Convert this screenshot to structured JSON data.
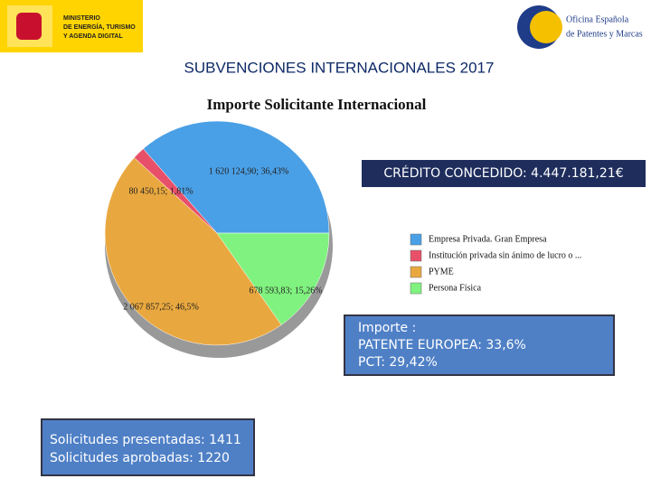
{
  "header": {
    "ministry": [
      "MINISTERIO",
      "DE ENERGÍA, TURISMO",
      "Y AGENDA DIGITAL"
    ],
    "office": [
      "Oficina Española",
      "de Patentes y Marcas"
    ],
    "title": "SUBVENCIONES INTERNACIONALES 2017"
  },
  "chart_data": {
    "type": "pie",
    "title": "Importe Solicitante Internacional",
    "categories": [
      "Empresa Privada. Gran Empresa",
      "Institución privada sin ánimo de lucro o ...",
      "PYME",
      "Persona Física"
    ],
    "values": [
      36.43,
      1.81,
      46.5,
      15.26
    ],
    "value_labels": [
      "1 620 124,90; 36,43%",
      "80 450,15; 1,81%",
      "2 067 857,25; 46,5%",
      "678 593,83; 15,26%"
    ],
    "colors": [
      "#4aa0e6",
      "#e8506a",
      "#e9a83f",
      "#80f27f"
    ]
  },
  "credit": "CRÉDITO CONCEDIDO: 4.447.181,21€",
  "importe": [
    "Importe :",
    "PATENTE EUROPEA: 33,6%",
    "PCT: 29,42%"
  ],
  "requests": [
    "Solicitudes presentadas: 1411",
    "Solicitudes aprobadas: 1220"
  ]
}
